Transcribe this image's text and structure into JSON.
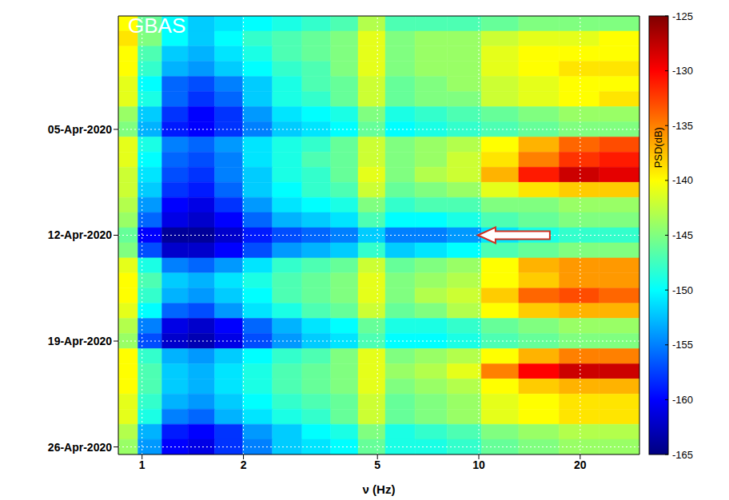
{
  "chart_data": {
    "type": "heatmap",
    "title": "GBAS",
    "x_label": "ν (Hz)",
    "log": "x",
    "grid": true,
    "xlim": [
      0.85,
      30
    ],
    "xticks": [
      1,
      2,
      5,
      10,
      20
    ],
    "x": [
      0.9,
      1.05,
      1.25,
      1.5,
      1.8,
      2.2,
      2.7,
      3.3,
      4.0,
      4.8,
      5.8,
      7.2,
      9,
      11.5,
      15,
      20,
      26
    ],
    "categories": [
      null,
      null,
      null,
      null,
      null,
      null,
      null,
      "05-Apr-2020",
      null,
      null,
      null,
      null,
      null,
      null,
      "12-Apr-2020",
      null,
      null,
      null,
      null,
      null,
      null,
      "19-Apr-2020",
      null,
      null,
      null,
      null,
      null,
      null,
      "26-Apr-2020"
    ],
    "cells": [
      [
        -140,
        -146,
        -150,
        -152,
        -151,
        -150,
        -149,
        -148,
        -147,
        -143,
        -147,
        -147,
        -147,
        -146,
        -145,
        -145,
        -145
      ],
      [
        -139,
        -145,
        -150,
        -152,
        -150,
        -148,
        -147,
        -146,
        -145,
        -141,
        -145,
        -144,
        -144,
        -142,
        -141,
        -141,
        -140
      ],
      [
        -140,
        -147,
        -152,
        -153,
        -151,
        -149,
        -147,
        -146,
        -145,
        -141,
        -145,
        -144,
        -144,
        -141,
        -140,
        -140,
        -140
      ],
      [
        -140,
        -148,
        -153,
        -154,
        -152,
        -150,
        -148,
        -147,
        -145,
        -141,
        -145,
        -144,
        -144,
        -141,
        -140,
        -139,
        -139
      ],
      [
        -141,
        -150,
        -156,
        -157,
        -155,
        -152,
        -149,
        -147,
        -146,
        -142,
        -146,
        -145,
        -144,
        -142,
        -141,
        -140,
        -140
      ],
      [
        -141,
        -149,
        -156,
        -158,
        -156,
        -152,
        -149,
        -148,
        -146,
        -142,
        -146,
        -145,
        -145,
        -142,
        -141,
        -140,
        -139
      ],
      [
        -144,
        -152,
        -158,
        -160,
        -158,
        -154,
        -151,
        -150,
        -149,
        -145,
        -149,
        -148,
        -147,
        -146,
        -145,
        -144,
        -144
      ],
      [
        -145,
        -153,
        -159,
        -160,
        -158,
        -155,
        -152,
        -151,
        -150,
        -146,
        -150,
        -149,
        -148,
        -147,
        -146,
        -145,
        -145
      ],
      [
        -141,
        -149,
        -155,
        -156,
        -154,
        -151,
        -149,
        -148,
        -146,
        -142,
        -145,
        -144,
        -143,
        -140,
        -137,
        -134,
        -133
      ],
      [
        -141,
        -150,
        -156,
        -157,
        -155,
        -151,
        -149,
        -147,
        -146,
        -142,
        -145,
        -144,
        -142,
        -139,
        -135,
        -132,
        -131
      ],
      [
        -142,
        -151,
        -157,
        -158,
        -155,
        -152,
        -149,
        -148,
        -146,
        -141,
        -145,
        -143,
        -142,
        -137,
        -131,
        -128,
        -129
      ],
      [
        -142,
        -152,
        -158,
        -159,
        -156,
        -152,
        -150,
        -148,
        -147,
        -142,
        -146,
        -145,
        -144,
        -141,
        -139,
        -138,
        -138
      ],
      [
        -143,
        -154,
        -160,
        -161,
        -158,
        -154,
        -151,
        -150,
        -149,
        -145,
        -148,
        -147,
        -147,
        -145,
        -145,
        -144,
        -144
      ],
      [
        -144,
        -156,
        -161,
        -162,
        -160,
        -156,
        -153,
        -152,
        -151,
        -147,
        -150,
        -150,
        -149,
        -147,
        -146,
        -145,
        -145
      ],
      [
        -146,
        -160,
        -164,
        -164,
        -162,
        -159,
        -157,
        -156,
        -155,
        -152,
        -155,
        -155,
        -154,
        -151,
        -149,
        -148,
        -148
      ],
      [
        -145,
        -157,
        -162,
        -162,
        -160,
        -157,
        -154,
        -153,
        -152,
        -148,
        -152,
        -151,
        -150,
        -147,
        -146,
        -145,
        -145
      ],
      [
        -141,
        -149,
        -155,
        -156,
        -154,
        -151,
        -148,
        -147,
        -146,
        -142,
        -146,
        -145,
        -144,
        -140,
        -137,
        -136,
        -136
      ],
      [
        -140,
        -147,
        -152,
        -153,
        -151,
        -149,
        -147,
        -146,
        -145,
        -141,
        -145,
        -144,
        -143,
        -140,
        -138,
        -136,
        -136
      ],
      [
        -140,
        -148,
        -153,
        -154,
        -152,
        -150,
        -147,
        -146,
        -145,
        -141,
        -145,
        -143,
        -142,
        -138,
        -134,
        -133,
        -134
      ],
      [
        -141,
        -150,
        -156,
        -157,
        -154,
        -151,
        -149,
        -147,
        -146,
        -142,
        -146,
        -145,
        -143,
        -140,
        -138,
        -137,
        -137
      ],
      [
        -143,
        -155,
        -161,
        -162,
        -160,
        -156,
        -153,
        -151,
        -150,
        -146,
        -149,
        -149,
        -148,
        -146,
        -145,
        -144,
        -144
      ],
      [
        -144,
        -157,
        -162,
        -163,
        -161,
        -157,
        -154,
        -152,
        -151,
        -147,
        -150,
        -150,
        -149,
        -147,
        -146,
        -145,
        -145
      ],
      [
        -140,
        -148,
        -153,
        -154,
        -152,
        -150,
        -148,
        -147,
        -145,
        -141,
        -145,
        -144,
        -143,
        -140,
        -137,
        -135,
        -135
      ],
      [
        -140,
        -147,
        -152,
        -153,
        -151,
        -149,
        -147,
        -146,
        -145,
        -141,
        -144,
        -143,
        -141,
        -135,
        -130,
        -128,
        -128
      ],
      [
        -140,
        -147,
        -152,
        -153,
        -151,
        -149,
        -147,
        -146,
        -145,
        -141,
        -145,
        -144,
        -143,
        -140,
        -138,
        -137,
        -137
      ],
      [
        -141,
        -148,
        -153,
        -154,
        -152,
        -150,
        -148,
        -147,
        -146,
        -142,
        -146,
        -145,
        -144,
        -141,
        -140,
        -139,
        -139
      ],
      [
        -141,
        -149,
        -155,
        -156,
        -153,
        -151,
        -149,
        -148,
        -146,
        -142,
        -146,
        -145,
        -144,
        -141,
        -140,
        -139,
        -139
      ],
      [
        -143,
        -153,
        -159,
        -160,
        -158,
        -154,
        -152,
        -150,
        -149,
        -145,
        -149,
        -148,
        -147,
        -145,
        -144,
        -143,
        -143
      ],
      [
        -144,
        -154,
        -160,
        -161,
        -158,
        -155,
        -152,
        -151,
        -150,
        -146,
        -149,
        -149,
        -148,
        -146,
        -145,
        -144,
        -144
      ]
    ],
    "colorbar_label": "PSD(dB)",
    "colorbar_range": [
      -165,
      -125
    ],
    "colorbar_ticks": [
      -125,
      -130,
      -135,
      -140,
      -145,
      -150,
      -155,
      -160,
      -165
    ]
  }
}
